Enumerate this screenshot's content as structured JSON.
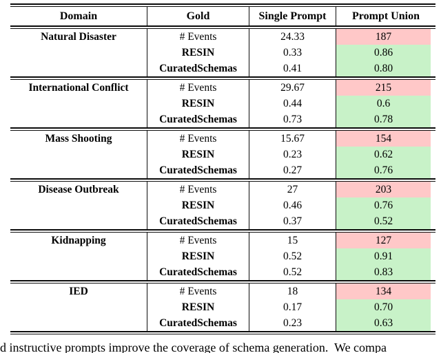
{
  "table": {
    "headers": [
      "Domain",
      "Gold",
      "Single Prompt",
      "Prompt Union"
    ],
    "groups": [
      {
        "domain": "Natural Disaster",
        "rows": [
          {
            "metric": "# Events",
            "single_prompt": "24.33",
            "prompt_union": "187",
            "union_highlight": "red"
          },
          {
            "metric": "RESIN",
            "single_prompt": "0.33",
            "prompt_union": "0.86",
            "union_highlight": "green"
          },
          {
            "metric": "CuratedSchemas",
            "single_prompt": "0.41",
            "prompt_union": "0.80",
            "union_highlight": "green"
          }
        ]
      },
      {
        "domain": "International Conflict",
        "rows": [
          {
            "metric": "# Events",
            "single_prompt": "29.67",
            "prompt_union": "215",
            "union_highlight": "red"
          },
          {
            "metric": "RESIN",
            "single_prompt": "0.44",
            "prompt_union": "0.6",
            "union_highlight": "green"
          },
          {
            "metric": "CuratedSchemas",
            "single_prompt": "0.73",
            "prompt_union": "0.78",
            "union_highlight": "green"
          }
        ]
      },
      {
        "domain": "Mass Shooting",
        "rows": [
          {
            "metric": "# Events",
            "single_prompt": "15.67",
            "prompt_union": "154",
            "union_highlight": "red"
          },
          {
            "metric": "RESIN",
            "single_prompt": "0.23",
            "prompt_union": "0.62",
            "union_highlight": "green"
          },
          {
            "metric": "CuratedSchemas",
            "single_prompt": "0.27",
            "prompt_union": "0.76",
            "union_highlight": "green"
          }
        ]
      },
      {
        "domain": "Disease Outbreak",
        "rows": [
          {
            "metric": "# Events",
            "single_prompt": "27",
            "prompt_union": "203",
            "union_highlight": "red"
          },
          {
            "metric": "RESIN",
            "single_prompt": "0.46",
            "prompt_union": "0.76",
            "union_highlight": "green"
          },
          {
            "metric": "CuratedSchemas",
            "single_prompt": "0.37",
            "prompt_union": "0.52",
            "union_highlight": "green"
          }
        ]
      },
      {
        "domain": "Kidnapping",
        "rows": [
          {
            "metric": "# Events",
            "single_prompt": "15",
            "prompt_union": "127",
            "union_highlight": "red"
          },
          {
            "metric": "RESIN",
            "single_prompt": "0.52",
            "prompt_union": "0.91",
            "union_highlight": "green"
          },
          {
            "metric": "CuratedSchemas",
            "single_prompt": "0.52",
            "prompt_union": "0.83",
            "union_highlight": "green"
          }
        ]
      },
      {
        "domain": "IED",
        "rows": [
          {
            "metric": "# Events",
            "single_prompt": "18",
            "prompt_union": "134",
            "union_highlight": "red"
          },
          {
            "metric": "RESIN",
            "single_prompt": "0.17",
            "prompt_union": "0.70",
            "union_highlight": "green"
          },
          {
            "metric": "CuratedSchemas",
            "single_prompt": "0.23",
            "prompt_union": "0.63",
            "union_highlight": "green"
          }
        ]
      }
    ]
  },
  "caption": "d instructive prompts improve the coverage of schema generation.  We compa",
  "colors": {
    "red_highlight": "#ffc8c8",
    "green_highlight": "#c8f2c8",
    "rule": "#0a0a0a"
  }
}
